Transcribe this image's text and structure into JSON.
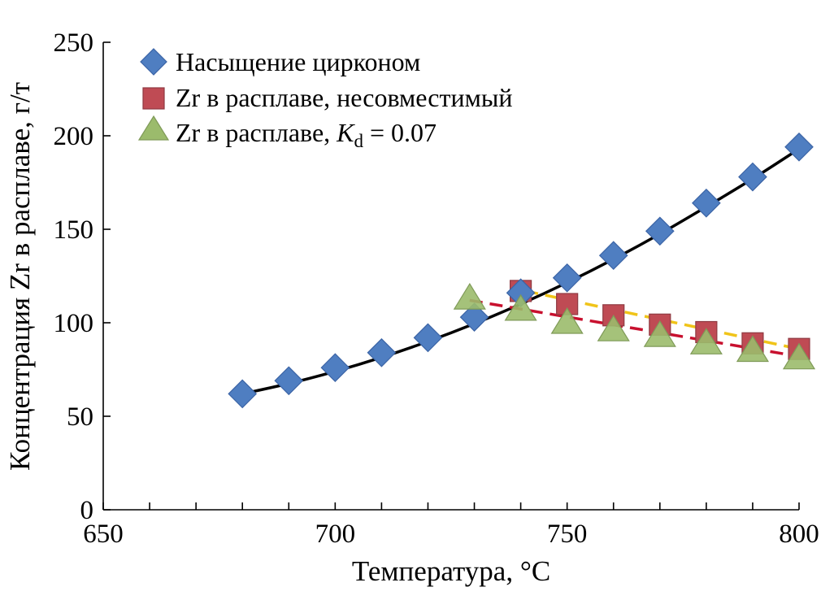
{
  "chart_data": {
    "type": "scatter",
    "xlabel": "Температура, °C",
    "ylabel": "Концентрация Zr в расплаве, г/т",
    "xlim": [
      650,
      800
    ],
    "ylim": [
      0,
      250
    ],
    "x_ticks": [
      650,
      700,
      750,
      800
    ],
    "x_minor_ticks": [
      660,
      670,
      680,
      690,
      710,
      720,
      730,
      740,
      760,
      770,
      780,
      790
    ],
    "y_ticks": [
      0,
      50,
      100,
      150,
      200,
      250
    ],
    "grid": false,
    "legend_position": "top-left",
    "series": [
      {
        "name": "Насыщение цирконом",
        "marker": "diamond",
        "color": "#4f7ec1",
        "x": [
          680,
          690,
          700,
          710,
          720,
          730,
          740,
          750,
          760,
          770,
          780,
          790,
          800
        ],
        "y": [
          62,
          69,
          76,
          84,
          92,
          103,
          116,
          124,
          136,
          149,
          164,
          178,
          194
        ]
      },
      {
        "name_prefix": "Zr в расплаве, несовместимый",
        "marker": "square",
        "color": "#bf4b54",
        "x": [
          740,
          750,
          760,
          770,
          780,
          790,
          800
        ],
        "y": [
          117,
          110,
          104,
          99,
          95,
          89,
          86
        ]
      },
      {
        "name_prefix": "Zr в расплаве, ",
        "name_italic": "K",
        "name_subscript": "d",
        "name_suffix": " = 0.07",
        "marker": "triangle",
        "color": "#9bbb6c",
        "x": [
          729,
          740,
          750,
          760,
          770,
          780,
          790,
          800
        ],
        "y": [
          113,
          107,
          100,
          96,
          93,
          89,
          85,
          81
        ]
      }
    ],
    "fit_lines": [
      {
        "style": "solid",
        "color": "#000000",
        "x": [
          680,
          690,
          700,
          710,
          720,
          730,
          740,
          750,
          760,
          770,
          780,
          790,
          800
        ],
        "y": [
          62,
          67.5,
          74,
          81.5,
          90,
          99.5,
          110,
          121.5,
          134,
          147.5,
          162,
          177,
          193
        ]
      },
      {
        "style": "dashed",
        "color": "#f0c419",
        "x": [
          741,
          800
        ],
        "y": [
          117,
          86
        ]
      },
      {
        "style": "dashed",
        "color": "#c8102e",
        "x": [
          729,
          800
        ],
        "y": [
          112,
          82
        ]
      }
    ]
  }
}
